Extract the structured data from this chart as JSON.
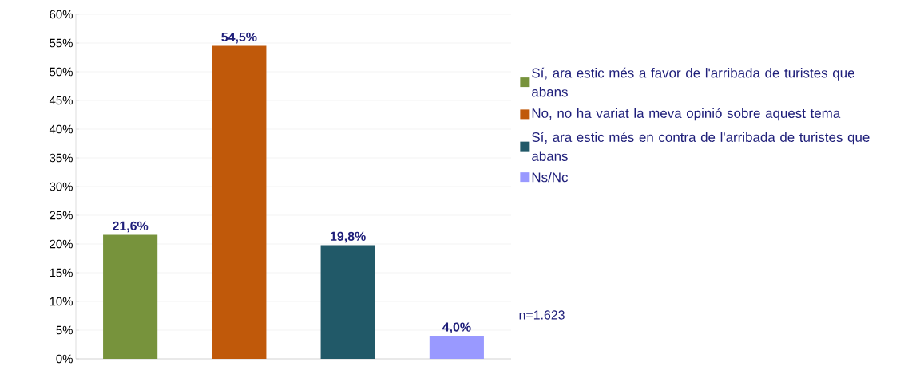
{
  "chart_data": {
    "type": "bar",
    "categories": [
      null,
      null,
      null,
      null
    ],
    "series": [
      {
        "name": "Sí, ara estic més a favor de l'arribada de turistes que abans",
        "color": "#77933c",
        "values": [
          21.6,
          null,
          null,
          null
        ],
        "value_labels": [
          "21,6%",
          null,
          null,
          null
        ]
      },
      {
        "name": "No, no ha variat la meva opinió sobre aquest tema",
        "color": "#c0590a",
        "values": [
          null,
          54.5,
          null,
          null
        ],
        "value_labels": [
          null,
          "54,5%",
          null,
          null
        ]
      },
      {
        "name": "Sí, ara estic més en contra de l'arribada de turistes que abans",
        "color": "#215968",
        "values": [
          null,
          null,
          19.8,
          null
        ],
        "value_labels": [
          null,
          null,
          "19,8%",
          null
        ]
      },
      {
        "name": "Ns/Nc",
        "color": "#9999ff",
        "values": [
          null,
          null,
          null,
          4.0
        ],
        "value_labels": [
          null,
          null,
          null,
          "4,0%"
        ]
      }
    ],
    "ylim": [
      0,
      60
    ],
    "yticks": [
      {
        "value": 0,
        "label": "0%"
      },
      {
        "value": 5,
        "label": "5%"
      },
      {
        "value": 10,
        "label": "10%"
      },
      {
        "value": 15,
        "label": "15%"
      },
      {
        "value": 20,
        "label": "20%"
      },
      {
        "value": 25,
        "label": "25%"
      },
      {
        "value": 30,
        "label": "30%"
      },
      {
        "value": 35,
        "label": "35%"
      },
      {
        "value": 40,
        "label": "40%"
      },
      {
        "value": 45,
        "label": "45%"
      },
      {
        "value": 50,
        "label": "50%"
      },
      {
        "value": 55,
        "label": "55%"
      },
      {
        "value": 60,
        "label": "60%"
      }
    ],
    "grid": "y",
    "legend": "right",
    "tick_labels": "y",
    "annotations": [
      "n=1.623"
    ]
  }
}
